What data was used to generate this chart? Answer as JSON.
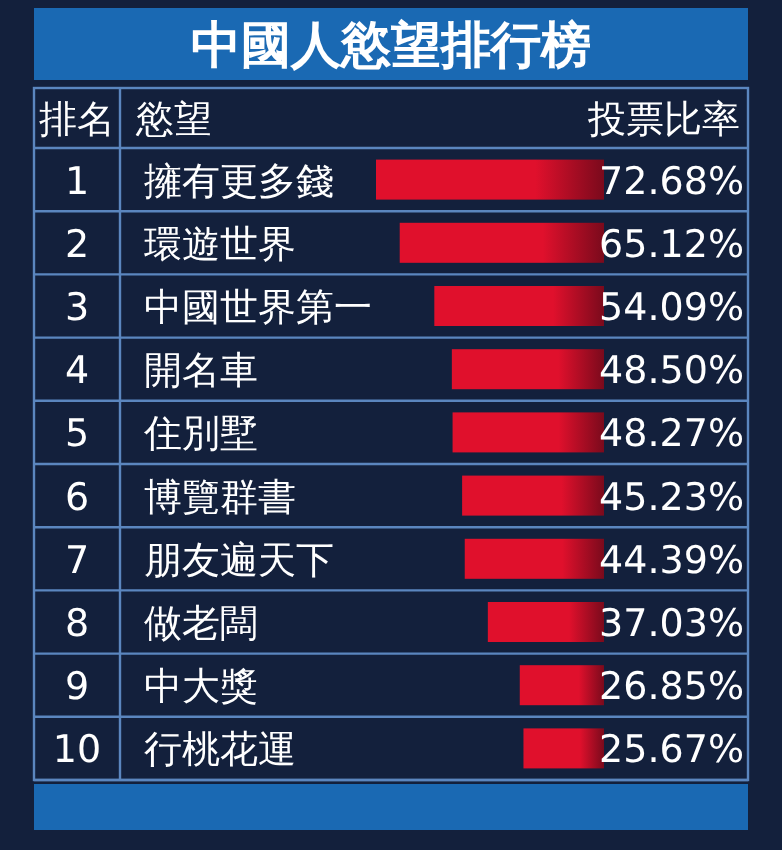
{
  "chart_data": {
    "type": "bar",
    "orientation": "horizontal",
    "title": "中國人慾望排行榜",
    "ylabel": "慾望",
    "xlabel": "投票比率",
    "categories": [
      "擁有更多錢",
      "環遊世界",
      "中國世界第一",
      "開名車",
      "住別墅",
      "博覽群書",
      "朋友遍天下",
      "做老闆",
      "中大獎",
      "行桃花運"
    ],
    "values": [
      72.68,
      65.12,
      54.09,
      48.5,
      48.27,
      45.23,
      44.39,
      37.03,
      26.85,
      25.67
    ],
    "value_labels": [
      "72.68%",
      "65.12%",
      "54.09%",
      "48.50%",
      "48.27%",
      "45.23%",
      "44.39%",
      "37.03%",
      "26.85%",
      "25.67%"
    ],
    "color": "#e0102c",
    "grid": "y",
    "annotations": [
      "排名",
      "1",
      "2",
      "3",
      "4",
      "5",
      "6",
      "7",
      "8",
      "9",
      "10"
    ]
  }
}
